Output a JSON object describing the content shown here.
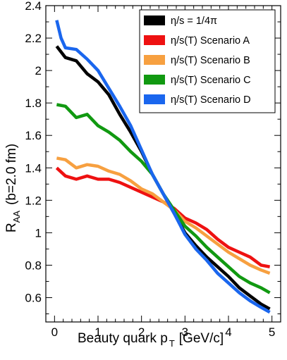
{
  "chart_data": {
    "type": "line",
    "title": "",
    "xlabel": "Beauty quark p_T [GeV/c]",
    "xlabel_main": "Beauty quark p",
    "xlabel_sub": "T",
    "xlabel_unit": "[GeV/c]",
    "ylabel_main": "R",
    "ylabel_sub": "AA",
    "ylabel_extra": "(b=2.0 fm)",
    "xlim": [
      -0.2,
      5.2
    ],
    "ylim": [
      0.45,
      2.4
    ],
    "x_ticks": [
      0,
      1,
      2,
      3,
      4,
      5
    ],
    "x_tick_labels": [
      "0",
      "1",
      "2",
      "3",
      "4",
      "5"
    ],
    "y_ticks": [
      0.6,
      0.8,
      1.0,
      1.2,
      1.4,
      1.6,
      1.8,
      2.0,
      2.2,
      2.4
    ],
    "y_tick_labels": [
      "0.6",
      "0.8",
      "1",
      "1.2",
      "1.4",
      "1.6",
      "1.8",
      "2",
      "2.2",
      "2.4"
    ],
    "grid": false,
    "legend_position": "top-right",
    "series": [
      {
        "name": "η/s = 1/4π",
        "color": "#000000",
        "x": [
          0.05,
          0.25,
          0.5,
          0.75,
          1.0,
          1.25,
          1.5,
          1.75,
          2.0,
          2.25,
          2.5,
          2.75,
          3.0,
          3.25,
          3.5,
          3.75,
          4.0,
          4.25,
          4.5,
          4.75,
          4.95
        ],
        "y": [
          2.15,
          2.08,
          2.06,
          1.98,
          1.93,
          1.85,
          1.73,
          1.62,
          1.5,
          1.36,
          1.24,
          1.12,
          1.0,
          0.92,
          0.85,
          0.79,
          0.73,
          0.66,
          0.61,
          0.56,
          0.53
        ]
      },
      {
        "name": "η/s(T) Scenario A",
        "color": "#ee1111",
        "x": [
          0.05,
          0.25,
          0.5,
          0.75,
          1.0,
          1.25,
          1.5,
          1.75,
          2.0,
          2.25,
          2.5,
          2.75,
          3.0,
          3.25,
          3.5,
          3.75,
          4.0,
          4.25,
          4.5,
          4.75,
          4.95
        ],
        "y": [
          1.4,
          1.35,
          1.33,
          1.35,
          1.33,
          1.33,
          1.31,
          1.28,
          1.25,
          1.22,
          1.19,
          1.15,
          1.09,
          1.06,
          1.02,
          0.96,
          0.91,
          0.88,
          0.85,
          0.8,
          0.79
        ]
      },
      {
        "name": "η/s(T) Scenario B",
        "color": "#f7a040",
        "x": [
          0.05,
          0.25,
          0.5,
          0.75,
          1.0,
          1.25,
          1.5,
          1.75,
          2.0,
          2.25,
          2.5,
          2.75,
          3.0,
          3.25,
          3.5,
          3.75,
          4.0,
          4.25,
          4.5,
          4.75,
          4.95
        ],
        "y": [
          1.46,
          1.45,
          1.4,
          1.42,
          1.41,
          1.38,
          1.36,
          1.32,
          1.27,
          1.24,
          1.19,
          1.14,
          1.07,
          1.03,
          0.98,
          0.93,
          0.88,
          0.84,
          0.8,
          0.77,
          0.75
        ]
      },
      {
        "name": "η/s(T) Scenario C",
        "color": "#119911",
        "x": [
          0.05,
          0.25,
          0.5,
          0.75,
          1.0,
          1.25,
          1.5,
          1.75,
          2.0,
          2.25,
          2.5,
          2.75,
          3.0,
          3.25,
          3.5,
          3.75,
          4.0,
          4.25,
          4.5,
          4.75,
          4.95
        ],
        "y": [
          1.79,
          1.78,
          1.71,
          1.73,
          1.66,
          1.62,
          1.57,
          1.5,
          1.44,
          1.36,
          1.24,
          1.14,
          1.04,
          0.98,
          0.91,
          0.85,
          0.79,
          0.73,
          0.69,
          0.66,
          0.63
        ]
      },
      {
        "name": "η/s(T) Scenario D",
        "color": "#1a66ee",
        "x": [
          0.05,
          0.15,
          0.25,
          0.5,
          0.75,
          1.0,
          1.25,
          1.5,
          1.75,
          2.0,
          2.25,
          2.5,
          2.75,
          3.0,
          3.25,
          3.5,
          3.75,
          4.0,
          4.25,
          4.5,
          4.75,
          4.95
        ],
        "y": [
          2.31,
          2.2,
          2.14,
          2.13,
          2.07,
          2.0,
          1.89,
          1.78,
          1.66,
          1.51,
          1.36,
          1.24,
          1.12,
          0.99,
          0.9,
          0.83,
          0.75,
          0.69,
          0.63,
          0.58,
          0.54,
          0.51
        ]
      }
    ],
    "legend": [
      {
        "label": "η/s = 1/4π",
        "color": "#000000"
      },
      {
        "label": "η/s(T) Scenario A",
        "color": "#ee1111"
      },
      {
        "label": "η/s(T) Scenario B",
        "color": "#f7a040"
      },
      {
        "label": "η/s(T) Scenario C",
        "color": "#119911"
      },
      {
        "label": "η/s(T) Scenario D",
        "color": "#1a66ee"
      }
    ]
  }
}
